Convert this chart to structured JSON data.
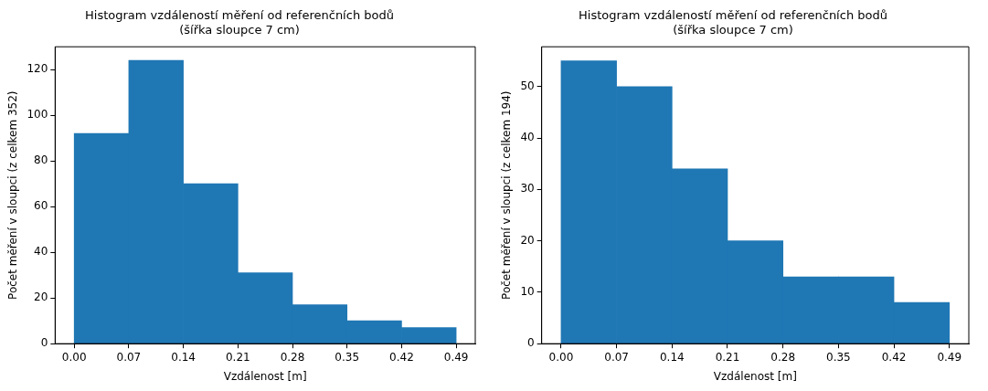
{
  "chart_data": [
    {
      "type": "histogram",
      "title": "Histogram vzdáleností měření od referenčních bodů",
      "subtitle": "(šířka sloupce 7 cm)",
      "xlabel": "Vzdálenost [m]",
      "ylabel": "Počet měření v sloupci (z celkem 352)",
      "bins": [
        0,
        0.07,
        0.14,
        0.21,
        0.28,
        0.35,
        0.42,
        0.49
      ],
      "values": [
        92,
        124,
        70,
        31,
        17,
        10,
        7
      ],
      "color": "#1f77b4",
      "xlim": [
        -0.0245,
        0.5145
      ],
      "ylim": [
        0,
        130
      ],
      "xticks": [
        {
          "value": 0,
          "label": "0.00"
        },
        {
          "value": 0.07,
          "label": "0.07"
        },
        {
          "value": 0.14,
          "label": "0.14"
        },
        {
          "value": 0.21,
          "label": "0.21"
        },
        {
          "value": 0.28,
          "label": "0.28"
        },
        {
          "value": 0.35,
          "label": "0.35"
        },
        {
          "value": 0.42,
          "label": "0.42"
        },
        {
          "value": 0.49,
          "label": "0.49"
        }
      ],
      "yticks": [
        0,
        20,
        40,
        60,
        80,
        100,
        120
      ],
      "grid": false,
      "legend": false
    },
    {
      "type": "histogram",
      "title": "Histogram vzdáleností měření od referenčních bodů",
      "subtitle": "(šířka sloupce 7 cm)",
      "xlabel": "Vzdálenost [m]",
      "ylabel": "Počet měření v sloupci (z celkem 194)",
      "bins": [
        0,
        0.07,
        0.14,
        0.21,
        0.28,
        0.35,
        0.42,
        0.49
      ],
      "values": [
        55,
        50,
        34,
        20,
        13,
        13,
        8
      ],
      "color": "#1f77b4",
      "xlim": [
        -0.0245,
        0.5145
      ],
      "ylim": [
        0,
        57.75
      ],
      "xticks": [
        {
          "value": 0,
          "label": "0.00"
        },
        {
          "value": 0.07,
          "label": "0.07"
        },
        {
          "value": 0.14,
          "label": "0.14"
        },
        {
          "value": 0.21,
          "label": "0.21"
        },
        {
          "value": 0.28,
          "label": "0.28"
        },
        {
          "value": 0.35,
          "label": "0.35"
        },
        {
          "value": 0.42,
          "label": "0.42"
        },
        {
          "value": 0.49,
          "label": "0.49"
        }
      ],
      "yticks": [
        0,
        10,
        20,
        30,
        40,
        50
      ],
      "grid": false,
      "legend": false
    }
  ]
}
